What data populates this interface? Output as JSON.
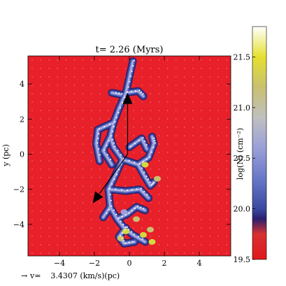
{
  "chart_data": {
    "type": "heatmap",
    "title": "t= 2.26 (Myrs)",
    "xlabel": "",
    "ylabel": "y (pc)",
    "xlim": [
      -5.8,
      5.8
    ],
    "ylim": [
      -5.8,
      5.6
    ],
    "x_ticks": [
      -4,
      -2,
      0,
      2,
      4
    ],
    "y_ticks": [
      4,
      2,
      0,
      -2,
      -4
    ],
    "x_tick_labels": [
      "−4",
      "−2",
      "0",
      "2",
      "4"
    ],
    "y_tick_labels": [
      "4",
      "2",
      "0",
      "−2",
      "−4"
    ],
    "background_color": "#e8202a",
    "colorbar": {
      "label": "log(N) (cm⁻²)",
      "range": [
        19.5,
        21.8
      ],
      "ticks": [
        21.5,
        21.0,
        20.5,
        20.0,
        19.5
      ],
      "tick_labels": [
        "21.5",
        "21.0",
        "20.5",
        "20.0",
        "19.5"
      ],
      "stops": [
        {
          "value": 19.5,
          "color": "#e01a1a"
        },
        {
          "value": 19.75,
          "color": "#d83030"
        },
        {
          "value": 19.9,
          "color": "#2a1f6e"
        },
        {
          "value": 20.0,
          "color": "#3a4aa0"
        },
        {
          "value": 20.3,
          "color": "#6a78c8"
        },
        {
          "value": 20.6,
          "color": "#9aa0d8"
        },
        {
          "value": 20.9,
          "color": "#c0c0c0"
        },
        {
          "value": 21.2,
          "color": "#c8c070"
        },
        {
          "value": 21.5,
          "color": "#e6e030"
        },
        {
          "value": 21.8,
          "color": "#ffffff"
        }
      ]
    },
    "filament_segments": [
      [
        [
          0.2,
          5.3
        ],
        [
          0.0,
          4.4
        ],
        [
          -0.2,
          3.5
        ],
        [
          -0.6,
          2.6
        ],
        [
          -0.9,
          1.8
        ],
        [
          -1.1,
          1.0
        ],
        [
          -0.9,
          0.4
        ],
        [
          -0.4,
          -0.3
        ],
        [
          -0.8,
          -1.2
        ],
        [
          -1.2,
          -2.0
        ],
        [
          -1.1,
          -3.0
        ],
        [
          -0.7,
          -3.7
        ],
        [
          -0.3,
          -4.2
        ],
        [
          0.2,
          -4.6
        ],
        [
          0.9,
          -5.0
        ]
      ],
      [
        [
          -0.2,
          3.5
        ],
        [
          0.5,
          3.6
        ],
        [
          0.8,
          3.3
        ]
      ],
      [
        [
          -0.5,
          3.4
        ],
        [
          -1.0,
          3.5
        ]
      ],
      [
        [
          -0.9,
          1.8
        ],
        [
          -1.8,
          1.4
        ],
        [
          -1.9,
          0.6
        ],
        [
          -1.7,
          -0.4
        ]
      ],
      [
        [
          -1.1,
          1.0
        ],
        [
          -1.5,
          0.2
        ],
        [
          -1.0,
          -0.6
        ]
      ],
      [
        [
          -0.4,
          -0.3
        ],
        [
          0.5,
          -0.6
        ],
        [
          1.1,
          -0.2
        ],
        [
          1.4,
          0.6
        ],
        [
          1.3,
          1.0
        ]
      ],
      [
        [
          0.5,
          -0.6
        ],
        [
          0.9,
          -1.3
        ],
        [
          1.2,
          -1.8
        ],
        [
          1.4,
          -1.6
        ]
      ],
      [
        [
          0.0,
          0.4
        ],
        [
          0.7,
          0.9
        ],
        [
          1.0,
          0.3
        ]
      ],
      [
        [
          -1.2,
          -2.0
        ],
        [
          -0.2,
          -2.1
        ],
        [
          0.6,
          -2.0
        ],
        [
          1.1,
          -2.5
        ]
      ],
      [
        [
          -1.1,
          -3.0
        ],
        [
          -1.5,
          -3.6
        ]
      ],
      [
        [
          -0.7,
          -3.7
        ],
        [
          -0.1,
          -3.4
        ],
        [
          0.4,
          -3.0
        ],
        [
          0.9,
          -3.2
        ]
      ],
      [
        [
          -0.2,
          -4.2
        ],
        [
          -0.6,
          -4.7
        ],
        [
          -0.3,
          -5.1
        ],
        [
          0.3,
          -5.0
        ]
      ]
    ],
    "bright_spots": [
      [
        0.8,
        -4.6,
        "#d4d840"
      ],
      [
        -0.2,
        -4.4,
        "#d4d840"
      ],
      [
        1.2,
        -4.3,
        "#c8c070"
      ],
      [
        0.4,
        -3.7,
        "#c8c070"
      ],
      [
        0.9,
        -0.6,
        "#d4d840"
      ],
      [
        1.6,
        -1.4,
        "#c8c070"
      ],
      [
        -0.3,
        -3.3,
        "#9aa0d8"
      ],
      [
        1.3,
        -5.0,
        "#d4d840"
      ],
      [
        -0.5,
        -4.8,
        "#c8c070"
      ]
    ],
    "arrows": [
      {
        "from": [
          -0.1,
          0.0
        ],
        "to": [
          -0.1,
          3.5
        ]
      },
      {
        "from": [
          -0.1,
          0.0
        ],
        "to": [
          -2.1,
          -2.8
        ]
      }
    ],
    "velocity_key": "v=    3.4307 (km/s)(pc)"
  }
}
